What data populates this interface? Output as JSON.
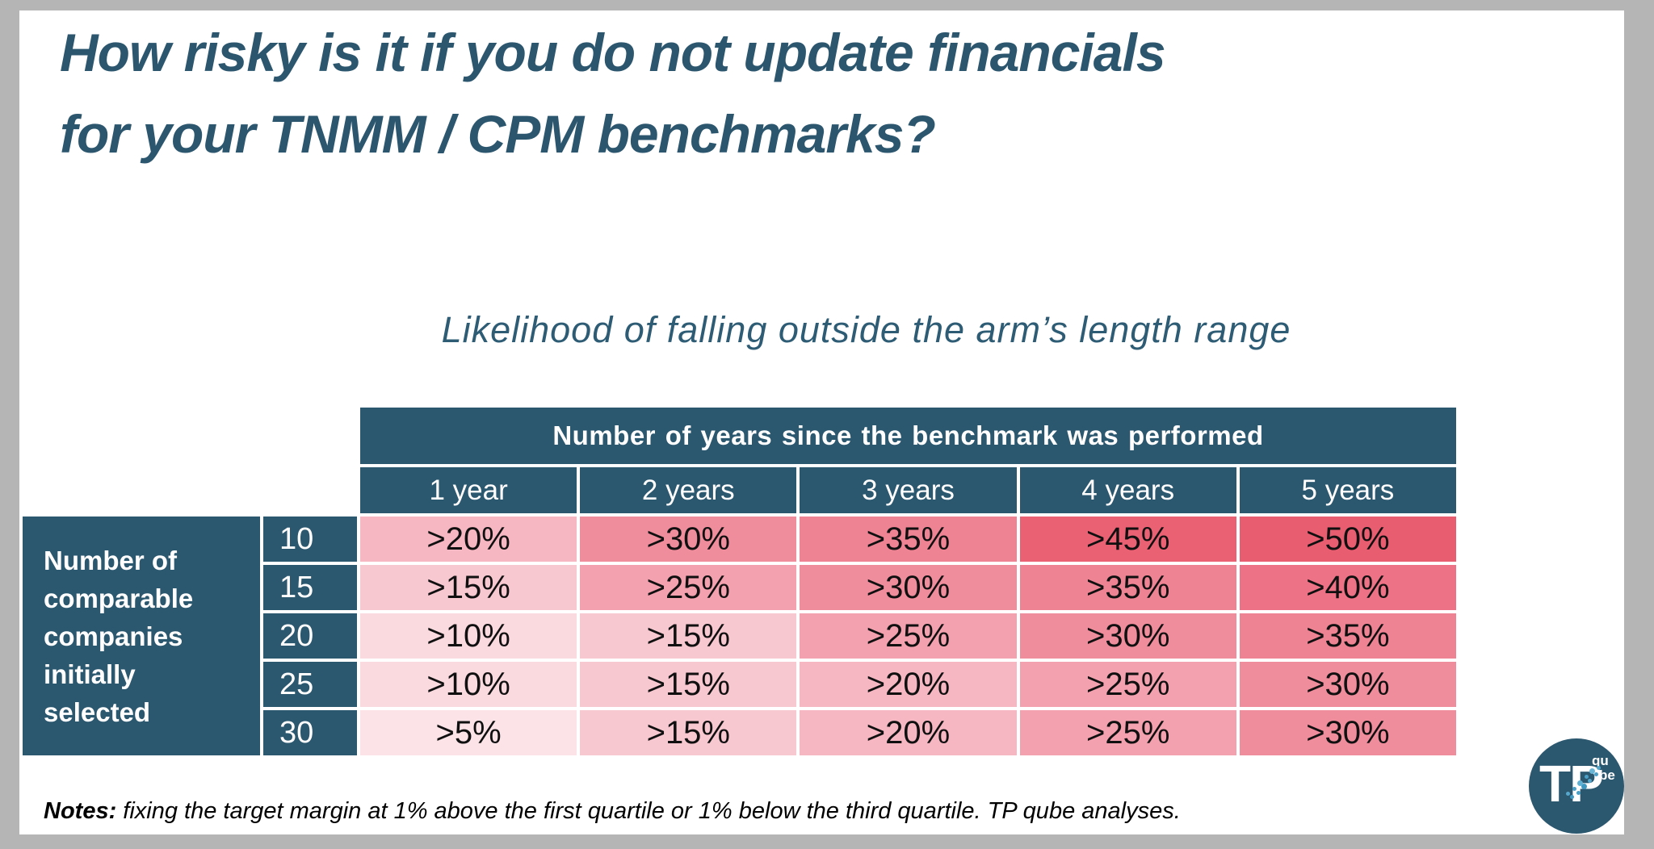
{
  "frame": {
    "background": "#b5b5b5",
    "slide_background": "#ffffff"
  },
  "colors": {
    "teal": "#2b576f",
    "title_text": "#2b566e",
    "subtitle_text": "#2e5c75",
    "header_text": "#ffffff",
    "value_text": "#101010",
    "logo_splash": "#4aa3c8"
  },
  "title": {
    "line1": "How risky is it if you do not update financials",
    "line2": "for your TNMM / CPM benchmarks?"
  },
  "subtitle": "Likelihood of falling outside the arm’s length range",
  "table": {
    "column_group_header": "Number of years since the benchmark was performed",
    "row_group_header": "Number of comparable companies initially selected",
    "column_headers": [
      "1 year",
      "2 years",
      "3 years",
      "4 years",
      "5 years"
    ],
    "rows": [
      {
        "label": "10",
        "values": [
          ">20%",
          ">30%",
          ">35%",
          ">45%",
          ">50%"
        ]
      },
      {
        "label": "15",
        "values": [
          ">15%",
          ">25%",
          ">30%",
          ">35%",
          ">40%"
        ]
      },
      {
        "label": "20",
        "values": [
          ">10%",
          ">15%",
          ">25%",
          ">30%",
          ">35%"
        ]
      },
      {
        "label": "25",
        "values": [
          ">10%",
          ">15%",
          ">20%",
          ">25%",
          ">30%"
        ]
      },
      {
        "label": "30",
        "values": [
          ">5%",
          ">15%",
          ">20%",
          ">25%",
          ">30%"
        ]
      }
    ],
    "value_colors": {
      ">5%": "#fbe3e8",
      ">10%": "#fad9df",
      ">15%": "#f8c8d1",
      ">20%": "#f6b7c2",
      ">25%": "#f3a1af",
      ">30%": "#f08d9d",
      ">35%": "#ee8393",
      ">40%": "#ed7285",
      ">45%": "#eb6174",
      ">50%": "#e95d71"
    }
  },
  "notes": {
    "label": "Notes:",
    "text": " fixing the target margin at 1% above the first quartile or 1% below the third quartile. TP qube analyses."
  },
  "logo": {
    "main": "TP",
    "sub_top": "qu",
    "sub_bottom": "be"
  },
  "chart_data": {
    "type": "heatmap",
    "title": "How risky is it if you do not update financials for your TNMM / CPM benchmarks?",
    "subtitle": "Likelihood of falling outside the arm’s length range",
    "x_label": "Number of years since the benchmark was performed",
    "y_label": "Number of comparable companies initially selected",
    "columns": [
      "1 year",
      "2 years",
      "3 years",
      "4 years",
      "5 years"
    ],
    "rows": [
      "10",
      "15",
      "20",
      "25",
      "30"
    ],
    "values_text": [
      [
        ">20%",
        ">30%",
        ">35%",
        ">45%",
        ">50%"
      ],
      [
        ">15%",
        ">25%",
        ">30%",
        ">35%",
        ">40%"
      ],
      [
        ">10%",
        ">15%",
        ">25%",
        ">30%",
        ">35%"
      ],
      [
        ">10%",
        ">15%",
        ">20%",
        ">25%",
        ">30%"
      ],
      [
        ">5%",
        ">15%",
        ">20%",
        ">25%",
        ">30%"
      ]
    ],
    "values_numeric_pct": [
      [
        20,
        30,
        35,
        45,
        50
      ],
      [
        15,
        25,
        30,
        35,
        40
      ],
      [
        10,
        15,
        25,
        30,
        35
      ],
      [
        10,
        15,
        20,
        25,
        30
      ],
      [
        5,
        15,
        20,
        25,
        30
      ]
    ],
    "annotation": "Notes: fixing the target margin at 1% above the first quartile or 1% below the third quartile. TP qube analyses.",
    "legend": "none",
    "color_scale": "light pink (low %) to red-pink (high %)"
  }
}
